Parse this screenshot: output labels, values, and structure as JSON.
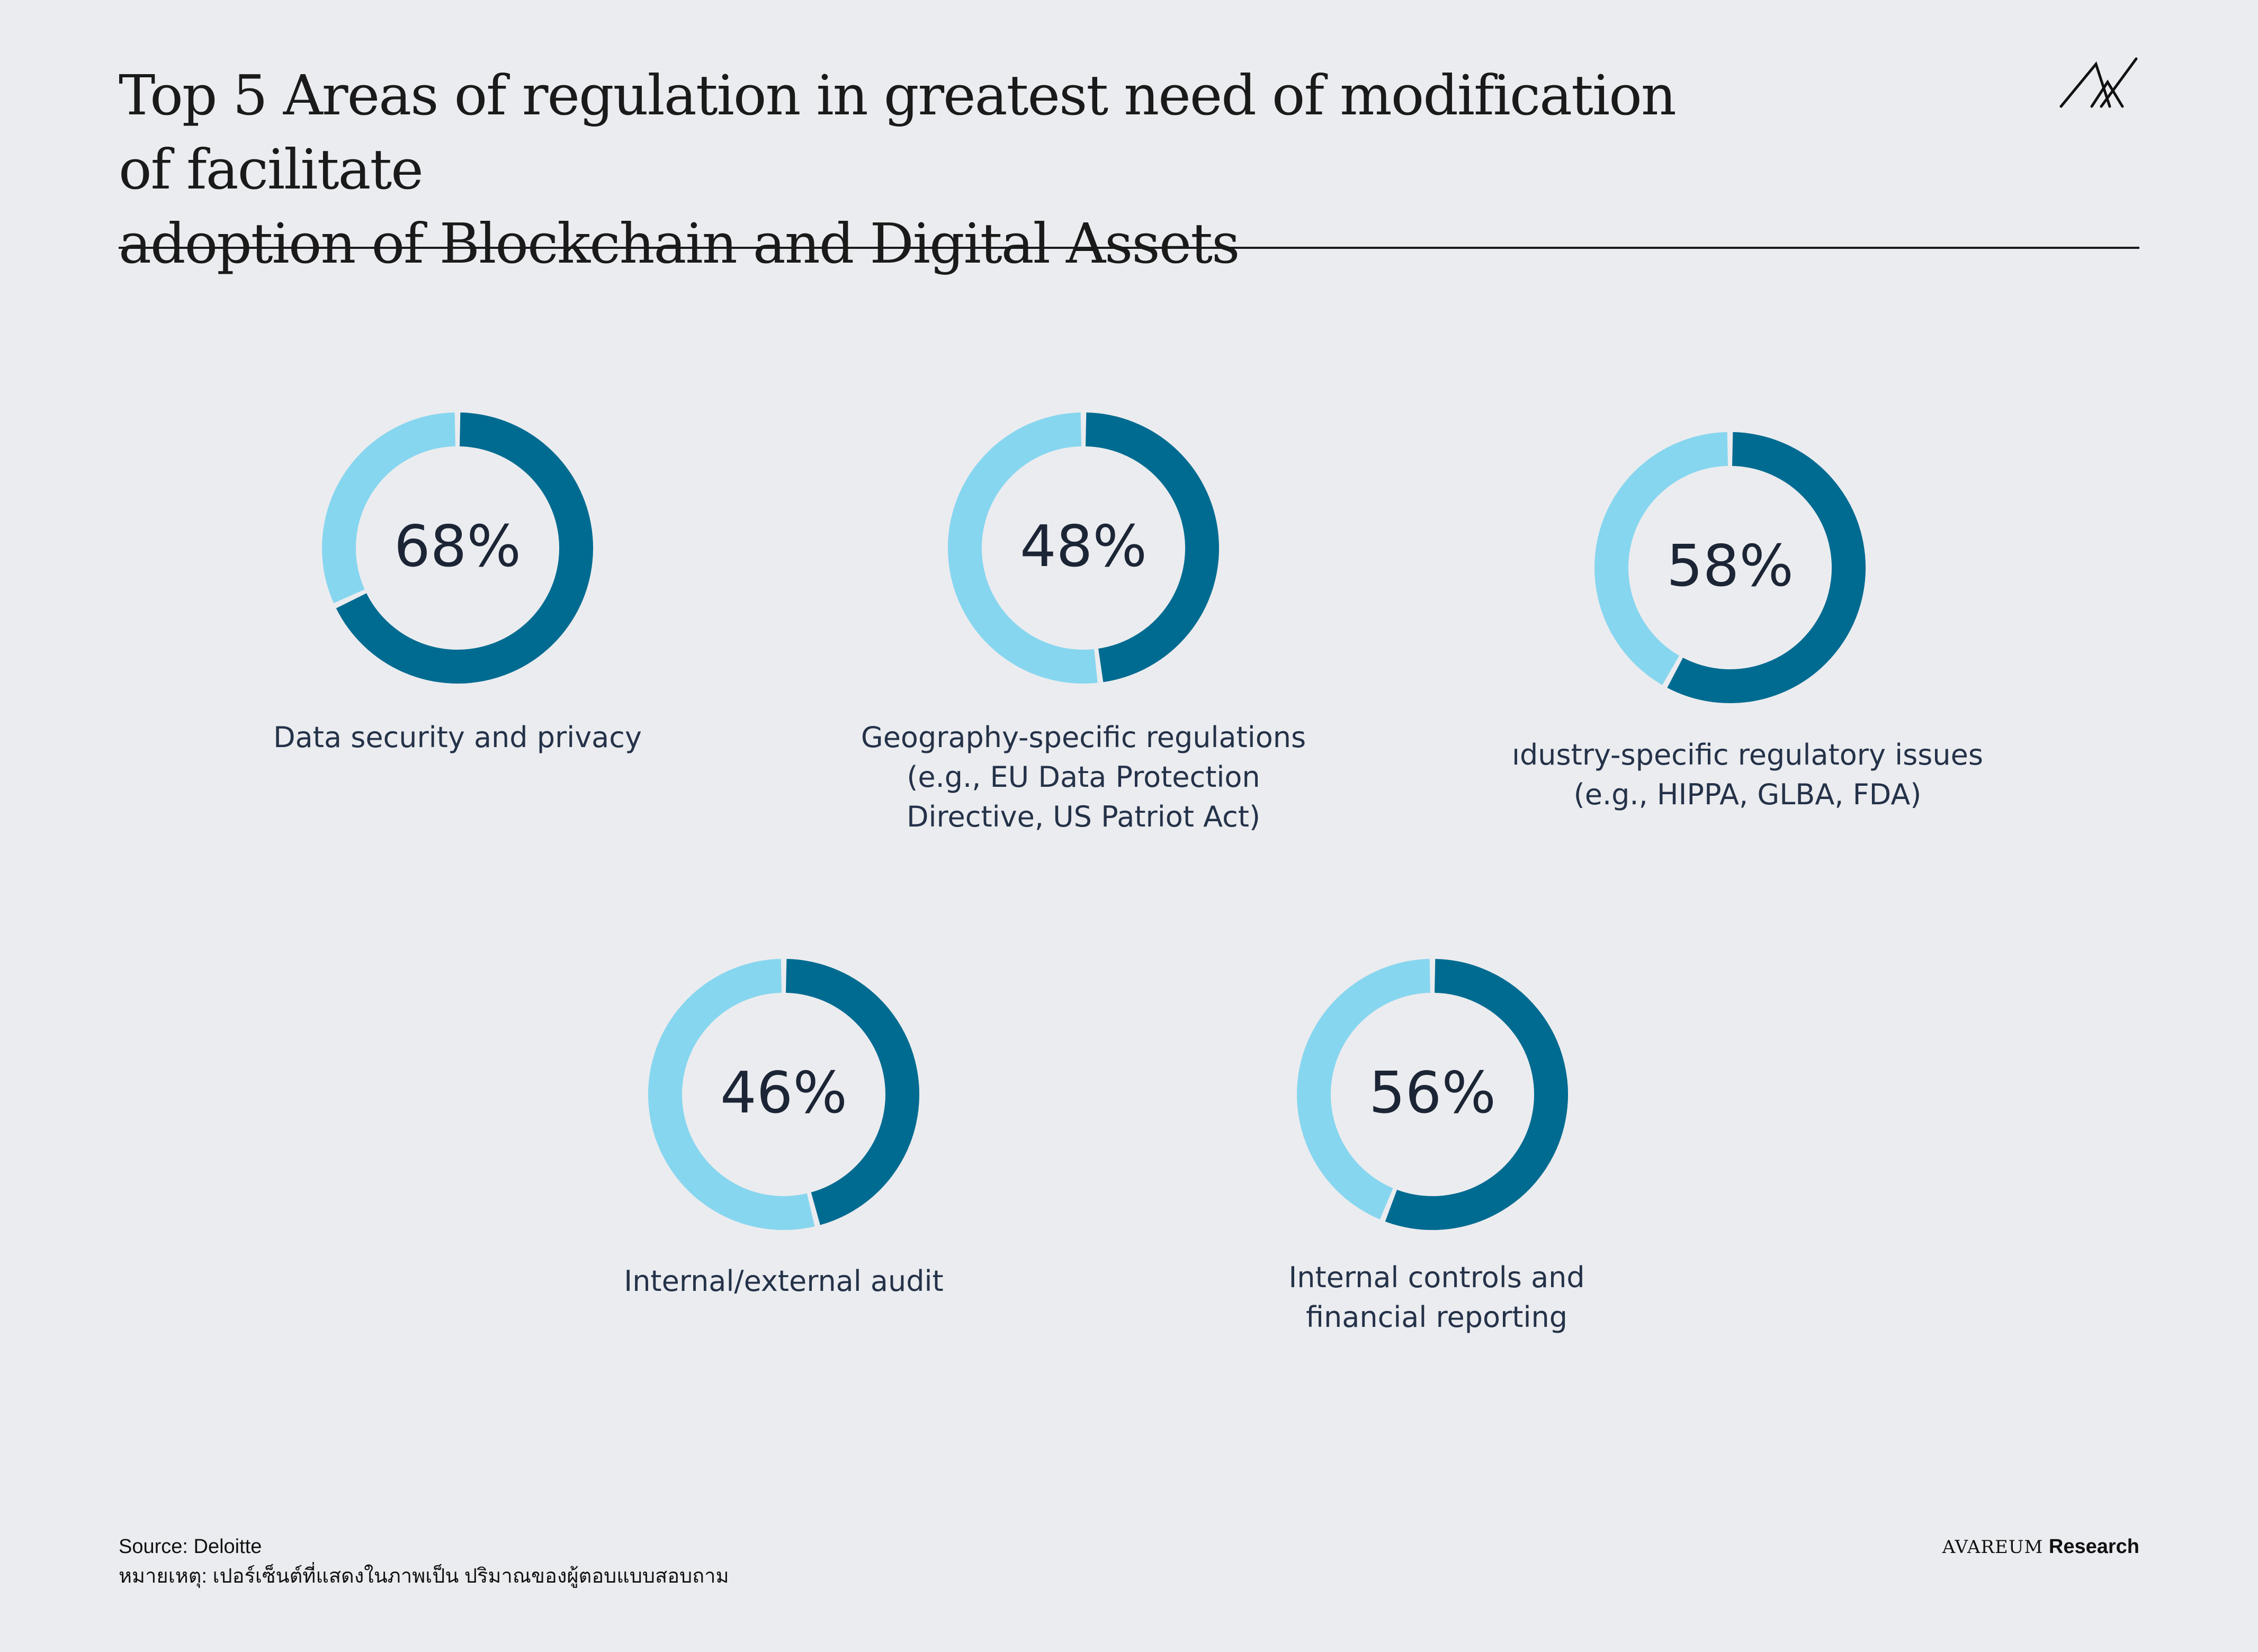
{
  "header": {
    "title_line1": "Top 5 Areas of regulation in greatest need of modification of facilitate",
    "title_line2": "adoption of Blockchain and Digital Assets",
    "logo_icon": "avareum-logo-icon"
  },
  "chart_data": {
    "type": "donut",
    "title": "Top 5 Areas of regulation in greatest need of modification of facilitate adoption of Blockchain and Digital Assets",
    "unit": "%",
    "colors": {
      "value": "#006b91",
      "remainder": "#87d6ef"
    },
    "items": [
      {
        "label": "Data security and privacy",
        "label_lines": [
          "Data security and privacy"
        ],
        "value": 68,
        "display": "68%"
      },
      {
        "label": "Geography-specific regulations (e.g., EU Data Protection Directive, US Patriot Act)",
        "label_lines": [
          "Geography-specific regulations",
          "(e.g., EU Data Protection",
          "Directive, US Patriot Act)"
        ],
        "value": 48,
        "display": "48%"
      },
      {
        "label": "ıdustry-specific regulatory issues (e.g., HIPPA, GLBA, FDA)",
        "label_lines": [
          "ıdustry-specific regulatory issues",
          "(e.g., HIPPA, GLBA, FDA)"
        ],
        "value": 58,
        "display": "58%"
      },
      {
        "label": "Internal/external audit",
        "label_lines": [
          "Internal/external audit"
        ],
        "value": 46,
        "display": "46%"
      },
      {
        "label": "Internal controls and financial reporting",
        "label_lines": [
          "Internal controls and",
          "financial reporting"
        ],
        "value": 56,
        "display": "56%"
      }
    ]
  },
  "footer": {
    "source": "Source: Deloitte",
    "note": "หมายเหตุ: เปอร์เซ็นต์ที่แสดงในภาพเป็น ปริมาณของผู้ตอบแบบสอบถาม",
    "brand_name": "AVAREUM",
    "brand_suffix": "Research"
  }
}
